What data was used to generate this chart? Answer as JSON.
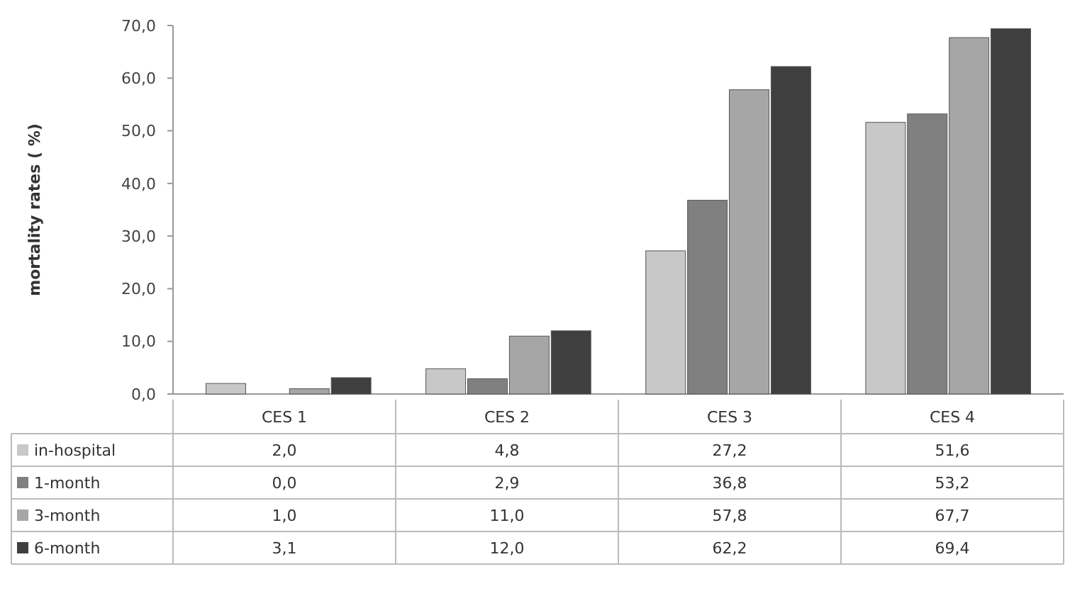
{
  "chart_data": {
    "type": "bar",
    "ylabel": "mortality rates ( %)",
    "categories": [
      "CES 1",
      "CES 2",
      "CES 3",
      "CES 4"
    ],
    "series": [
      {
        "name": "in-hospital",
        "color": "#c8c8c8",
        "values": [
          2.0,
          4.8,
          27.2,
          51.6
        ],
        "value_labels": [
          "2,0",
          "4,8",
          "27,2",
          "51,6"
        ]
      },
      {
        "name": "1-month",
        "color": "#808080",
        "values": [
          0.0,
          2.9,
          36.8,
          53.2
        ],
        "value_labels": [
          "0,0",
          "2,9",
          "36,8",
          "53,2"
        ]
      },
      {
        "name": "3-month",
        "color": "#a6a6a6",
        "values": [
          1.0,
          11.0,
          57.8,
          67.7
        ],
        "value_labels": [
          "1,0",
          "11,0",
          "57,8",
          "67,7"
        ]
      },
      {
        "name": "6-month",
        "color": "#3f3f3f",
        "values": [
          3.1,
          12.0,
          62.2,
          69.4
        ],
        "value_labels": [
          "3,1",
          "12,0",
          "62,2",
          "69,4"
        ]
      }
    ],
    "ylim": [
      0,
      70
    ],
    "yticks": [
      {
        "value": 0,
        "label": "0,0"
      },
      {
        "value": 10,
        "label": "10,0"
      },
      {
        "value": 20,
        "label": "20,0"
      },
      {
        "value": 30,
        "label": "30,0"
      },
      {
        "value": 40,
        "label": "40,0"
      },
      {
        "value": 50,
        "label": "50,0"
      },
      {
        "value": 60,
        "label": "60,0"
      },
      {
        "value": 70,
        "label": "70,0"
      }
    ],
    "legend": "bottom"
  }
}
